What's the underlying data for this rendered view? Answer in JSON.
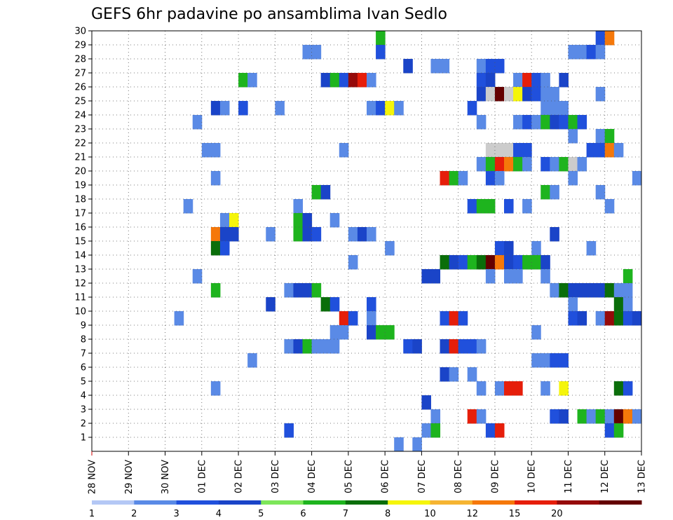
{
  "chart_data": {
    "type": "heatmap",
    "title": "GEFS 6hr padavine po ansamblima Ivan Sedlo",
    "xlabel": "",
    "ylabel": "",
    "x_tick_labels": [
      "28 NOV",
      "29 NOV",
      "30 NOV",
      "01 DEC",
      "02 DEC",
      "03 DEC",
      "04 DEC",
      "05 DEC",
      "06 DEC",
      "07 DEC",
      "08 DEC",
      "09 DEC",
      "10 DEC",
      "11 DEC",
      "12 DEC",
      "13 DEC"
    ],
    "x_unit": "6-hour step from 28 NOV 00z",
    "xlim": [
      0,
      60
    ],
    "y_tick_labels": [
      "1",
      "2",
      "3",
      "4",
      "5",
      "6",
      "7",
      "8",
      "9",
      "10",
      "11",
      "12",
      "13",
      "14",
      "15",
      "16",
      "17",
      "18",
      "19",
      "20",
      "21",
      "22",
      "23",
      "24",
      "25",
      "26",
      "27",
      "28",
      "29",
      "30"
    ],
    "ylim": [
      0,
      30
    ],
    "grid": true,
    "colorbar": {
      "position": "bottom",
      "labels": [
        "1",
        "2",
        "3",
        "4",
        "5",
        "6",
        "7",
        "8",
        "10",
        "12",
        "15",
        "20"
      ],
      "colors": [
        "#b4c8f5",
        "#5a8ae6",
        "#2050dc",
        "#1a44c8",
        "#7de65a",
        "#1eb41e",
        "#0a6e0a",
        "#f5f50a",
        "#f5b432",
        "#f5780a",
        "#e61e0a",
        "#960a0a",
        "#640000"
      ]
    },
    "levels": [
      1,
      2,
      3,
      4,
      5,
      6,
      7,
      8,
      10,
      12,
      15,
      20
    ],
    "cells": [
      [
        30,
        32,
        5
      ],
      [
        30,
        56,
        2
      ],
      [
        30,
        57,
        9
      ],
      [
        29,
        24,
        1
      ],
      [
        29,
        25,
        1
      ],
      [
        29,
        32,
        2
      ],
      [
        29,
        53,
        1
      ],
      [
        29,
        54,
        1
      ],
      [
        29,
        55,
        2
      ],
      [
        29,
        56,
        1
      ],
      [
        28,
        35,
        3
      ],
      [
        28,
        38,
        1
      ],
      [
        28,
        39,
        1
      ],
      [
        28,
        43,
        1
      ],
      [
        28,
        44,
        2
      ],
      [
        28,
        45,
        2
      ],
      [
        27,
        17,
        5
      ],
      [
        27,
        18,
        1
      ],
      [
        27,
        26,
        3
      ],
      [
        27,
        27,
        5
      ],
      [
        27,
        28,
        2
      ],
      [
        27,
        29,
        11
      ],
      [
        27,
        30,
        10
      ],
      [
        27,
        31,
        1
      ],
      [
        27,
        43,
        2
      ],
      [
        27,
        44,
        3
      ],
      [
        27,
        47,
        1
      ],
      [
        27,
        48,
        10
      ],
      [
        27,
        49,
        2
      ],
      [
        27,
        50,
        1
      ],
      [
        27,
        52,
        3
      ],
      [
        26,
        43,
        3
      ],
      [
        26,
        44,
        13
      ],
      [
        26,
        45,
        12
      ],
      [
        26,
        46,
        14
      ],
      [
        26,
        47,
        7
      ],
      [
        26,
        48,
        3
      ],
      [
        26,
        49,
        2
      ],
      [
        26,
        50,
        1
      ],
      [
        26,
        51,
        1
      ],
      [
        26,
        56,
        1
      ],
      [
        25,
        14,
        3
      ],
      [
        25,
        15,
        1
      ],
      [
        25,
        17,
        2
      ],
      [
        25,
        21,
        1
      ],
      [
        25,
        31,
        1
      ],
      [
        25,
        32,
        2
      ],
      [
        25,
        33,
        7
      ],
      [
        25,
        34,
        1
      ],
      [
        25,
        42,
        2
      ],
      [
        25,
        50,
        1
      ],
      [
        25,
        51,
        1
      ],
      [
        25,
        52,
        1
      ],
      [
        24,
        12,
        1
      ],
      [
        24,
        43,
        1
      ],
      [
        24,
        47,
        1
      ],
      [
        24,
        48,
        2
      ],
      [
        24,
        49,
        1
      ],
      [
        24,
        50,
        5
      ],
      [
        24,
        51,
        3
      ],
      [
        24,
        52,
        2
      ],
      [
        24,
        53,
        5
      ],
      [
        24,
        54,
        2
      ],
      [
        23,
        53,
        1
      ],
      [
        23,
        56,
        1
      ],
      [
        23,
        57,
        5
      ],
      [
        22,
        13,
        1
      ],
      [
        22,
        14,
        1
      ],
      [
        22,
        28,
        1
      ],
      [
        22,
        44,
        13
      ],
      [
        22,
        45,
        14
      ],
      [
        22,
        46,
        13
      ],
      [
        22,
        47,
        2
      ],
      [
        22,
        48,
        2
      ],
      [
        22,
        55,
        2
      ],
      [
        22,
        56,
        2
      ],
      [
        22,
        57,
        9
      ],
      [
        22,
        58,
        1
      ],
      [
        21,
        43,
        1
      ],
      [
        21,
        44,
        5
      ],
      [
        21,
        45,
        10
      ],
      [
        21,
        46,
        9
      ],
      [
        21,
        47,
        5
      ],
      [
        21,
        48,
        1
      ],
      [
        21,
        50,
        2
      ],
      [
        21,
        51,
        1
      ],
      [
        21,
        52,
        5
      ],
      [
        21,
        53,
        13
      ],
      [
        21,
        54,
        1
      ],
      [
        20,
        14,
        1
      ],
      [
        20,
        39,
        10
      ],
      [
        20,
        40,
        5
      ],
      [
        20,
        41,
        1
      ],
      [
        20,
        44,
        2
      ],
      [
        20,
        45,
        1
      ],
      [
        20,
        53,
        1
      ],
      [
        20,
        60,
        1
      ],
      [
        19,
        25,
        5
      ],
      [
        19,
        26,
        3
      ],
      [
        19,
        50,
        5
      ],
      [
        19,
        51,
        1
      ],
      [
        19,
        56,
        1
      ],
      [
        18,
        11,
        1
      ],
      [
        18,
        23,
        1
      ],
      [
        18,
        42,
        2
      ],
      [
        18,
        43,
        5
      ],
      [
        18,
        44,
        5
      ],
      [
        18,
        46,
        2
      ],
      [
        18,
        48,
        1
      ],
      [
        18,
        57,
        1
      ],
      [
        17,
        15,
        1
      ],
      [
        17,
        16,
        7
      ],
      [
        17,
        23,
        5
      ],
      [
        17,
        24,
        3
      ],
      [
        17,
        27,
        1
      ],
      [
        16,
        14,
        9
      ],
      [
        16,
        15,
        3
      ],
      [
        16,
        16,
        3
      ],
      [
        16,
        20,
        1
      ],
      [
        16,
        23,
        5
      ],
      [
        16,
        24,
        3
      ],
      [
        16,
        25,
        2
      ],
      [
        16,
        29,
        1
      ],
      [
        16,
        30,
        3
      ],
      [
        16,
        31,
        1
      ],
      [
        16,
        51,
        3
      ],
      [
        15,
        14,
        6
      ],
      [
        15,
        15,
        2
      ],
      [
        15,
        33,
        1
      ],
      [
        15,
        45,
        2
      ],
      [
        15,
        46,
        3
      ],
      [
        15,
        49,
        1
      ],
      [
        15,
        55,
        1
      ],
      [
        14,
        29,
        1
      ],
      [
        14,
        39,
        6
      ],
      [
        14,
        40,
        3
      ],
      [
        14,
        41,
        2
      ],
      [
        14,
        42,
        5
      ],
      [
        14,
        43,
        6
      ],
      [
        14,
        44,
        12
      ],
      [
        14,
        45,
        9
      ],
      [
        14,
        46,
        3
      ],
      [
        14,
        47,
        2
      ],
      [
        14,
        48,
        5
      ],
      [
        14,
        49,
        5
      ],
      [
        14,
        50,
        3
      ],
      [
        13,
        12,
        1
      ],
      [
        13,
        37,
        3
      ],
      [
        13,
        38,
        3
      ],
      [
        13,
        44,
        1
      ],
      [
        13,
        46,
        1
      ],
      [
        13,
        47,
        1
      ],
      [
        13,
        50,
        1
      ],
      [
        13,
        59,
        5
      ],
      [
        12,
        14,
        5
      ],
      [
        12,
        22,
        1
      ],
      [
        12,
        23,
        3
      ],
      [
        12,
        24,
        3
      ],
      [
        12,
        25,
        5
      ],
      [
        12,
        51,
        1
      ],
      [
        12,
        52,
        6
      ],
      [
        12,
        53,
        3
      ],
      [
        12,
        54,
        3
      ],
      [
        12,
        55,
        3
      ],
      [
        12,
        56,
        3
      ],
      [
        12,
        57,
        6
      ],
      [
        12,
        58,
        1
      ],
      [
        12,
        59,
        1
      ],
      [
        11,
        20,
        3
      ],
      [
        11,
        26,
        6
      ],
      [
        11,
        27,
        2
      ],
      [
        11,
        31,
        2
      ],
      [
        11,
        53,
        1
      ],
      [
        11,
        58,
        6
      ],
      [
        11,
        59,
        1
      ],
      [
        10,
        10,
        1
      ],
      [
        10,
        28,
        10
      ],
      [
        10,
        29,
        2
      ],
      [
        10,
        31,
        1
      ],
      [
        10,
        39,
        2
      ],
      [
        10,
        40,
        10
      ],
      [
        10,
        41,
        2
      ],
      [
        10,
        53,
        2
      ],
      [
        10,
        54,
        3
      ],
      [
        10,
        56,
        1
      ],
      [
        10,
        57,
        11
      ],
      [
        10,
        58,
        6
      ],
      [
        10,
        59,
        2
      ],
      [
        10,
        60,
        3
      ],
      [
        9,
        27,
        1
      ],
      [
        9,
        28,
        1
      ],
      [
        9,
        31,
        3
      ],
      [
        9,
        32,
        5
      ],
      [
        9,
        33,
        5
      ],
      [
        9,
        49,
        1
      ],
      [
        8,
        22,
        1
      ],
      [
        8,
        23,
        3
      ],
      [
        8,
        24,
        5
      ],
      [
        8,
        25,
        1
      ],
      [
        8,
        26,
        1
      ],
      [
        8,
        27,
        1
      ],
      [
        8,
        35,
        2
      ],
      [
        8,
        36,
        3
      ],
      [
        8,
        39,
        3
      ],
      [
        8,
        40,
        10
      ],
      [
        8,
        41,
        2
      ],
      [
        8,
        42,
        2
      ],
      [
        8,
        43,
        1
      ],
      [
        7,
        18,
        1
      ],
      [
        7,
        49,
        1
      ],
      [
        7,
        50,
        1
      ],
      [
        7,
        51,
        2
      ],
      [
        7,
        52,
        2
      ],
      [
        6,
        39,
        3
      ],
      [
        6,
        40,
        1
      ],
      [
        6,
        42,
        1
      ],
      [
        5,
        14,
        1
      ],
      [
        5,
        43,
        1
      ],
      [
        5,
        45,
        1
      ],
      [
        5,
        46,
        10
      ],
      [
        5,
        47,
        10
      ],
      [
        5,
        50,
        1
      ],
      [
        5,
        52,
        7
      ],
      [
        5,
        58,
        6
      ],
      [
        5,
        59,
        2
      ],
      [
        4,
        37,
        3
      ],
      [
        3,
        38,
        1
      ],
      [
        3,
        42,
        10
      ],
      [
        3,
        43,
        1
      ],
      [
        3,
        51,
        2
      ],
      [
        3,
        52,
        3
      ],
      [
        3,
        54,
        5
      ],
      [
        3,
        55,
        1
      ],
      [
        3,
        56,
        5
      ],
      [
        3,
        57,
        1
      ],
      [
        3,
        58,
        12
      ],
      [
        3,
        59,
        9
      ],
      [
        3,
        60,
        1
      ],
      [
        2,
        22,
        2
      ],
      [
        2,
        37,
        1
      ],
      [
        2,
        38,
        5
      ],
      [
        2,
        44,
        2
      ],
      [
        2,
        45,
        10
      ],
      [
        2,
        57,
        2
      ],
      [
        2,
        58,
        5
      ],
      [
        1,
        34,
        1
      ],
      [
        1,
        36,
        1
      ]
    ]
  }
}
